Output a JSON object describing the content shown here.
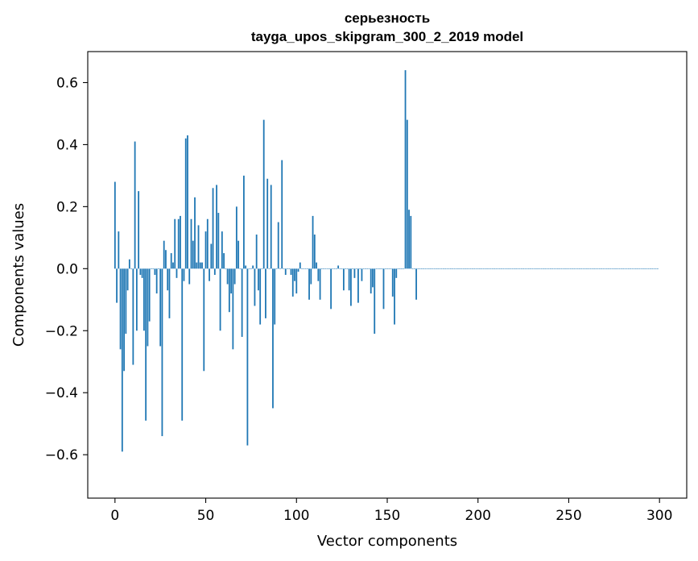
{
  "chart_data": {
    "type": "bar",
    "title": "серьезность",
    "subtitle": "tayga_upos_skipgram_300_2_2019 model",
    "xlabel": "Vector components",
    "ylabel": "Components values",
    "xlim": [
      -15,
      315
    ],
    "ylim": [
      -0.74,
      0.7
    ],
    "xticks": [
      0,
      50,
      100,
      150,
      200,
      250,
      300
    ],
    "xtick_labels": [
      "0",
      "50",
      "100",
      "150",
      "200",
      "250",
      "300"
    ],
    "yticks": [
      -0.6,
      -0.4,
      -0.2,
      0.0,
      0.2,
      0.4,
      0.6
    ],
    "ytick_labels": [
      "−0.6",
      "−0.4",
      "−0.2",
      "0.0",
      "0.2",
      "0.4",
      "0.6"
    ],
    "bar_color": "#1f77b4",
    "grid": false,
    "x_start": 0,
    "values": [
      0.28,
      -0.11,
      0.12,
      -0.26,
      -0.59,
      -0.33,
      -0.21,
      -0.07,
      0.03,
      0.0,
      -0.31,
      0.41,
      -0.2,
      0.25,
      -0.02,
      -0.03,
      -0.2,
      -0.49,
      -0.25,
      -0.17,
      0.0,
      0.0,
      -0.02,
      -0.08,
      0.0,
      -0.25,
      -0.54,
      0.09,
      0.06,
      -0.07,
      -0.16,
      0.05,
      0.02,
      0.16,
      -0.03,
      0.16,
      0.17,
      -0.49,
      -0.04,
      0.42,
      0.43,
      -0.05,
      0.16,
      0.09,
      0.23,
      0.02,
      0.14,
      0.02,
      0.02,
      -0.33,
      0.12,
      0.16,
      -0.04,
      0.08,
      0.26,
      -0.02,
      0.27,
      0.18,
      -0.2,
      0.12,
      0.05,
      0.0,
      -0.05,
      -0.14,
      -0.08,
      -0.26,
      -0.05,
      0.2,
      0.09,
      0.0,
      -0.22,
      0.3,
      0.01,
      -0.57,
      0.0,
      0.0,
      0.01,
      -0.12,
      0.11,
      -0.07,
      -0.18,
      0.0,
      0.48,
      -0.16,
      0.29,
      0.0,
      0.27,
      -0.45,
      -0.18,
      0.0,
      0.15,
      0.0,
      0.35,
      0.0,
      -0.02,
      0.0,
      0.0,
      -0.02,
      -0.09,
      -0.04,
      -0.08,
      -0.01,
      0.02,
      0.0,
      0.0,
      0.0,
      0.0,
      -0.1,
      -0.05,
      0.17,
      0.11,
      0.02,
      -0.04,
      -0.1,
      0.0,
      0.0,
      0.0,
      0.0,
      0.0,
      -0.13,
      0.0,
      0.0,
      0.0,
      0.01,
      0.0,
      0.0,
      -0.07,
      0.0,
      0.0,
      -0.07,
      -0.12,
      0.0,
      -0.03,
      0.0,
      -0.11,
      0.0,
      -0.04,
      0.0,
      0.0,
      0.0,
      0.0,
      -0.08,
      -0.06,
      -0.21,
      0.0,
      0.0,
      0.0,
      0.0,
      -0.13,
      0.0,
      0.0,
      0.0,
      0.0,
      -0.09,
      -0.18,
      -0.03,
      0.0,
      0.0,
      0.0,
      0.0,
      0.64,
      0.48,
      0.19,
      0.17,
      0.0,
      0.0,
      -0.1,
      0.0,
      0.0,
      0.0,
      0.0,
      0.0,
      0.0,
      0.0,
      0.0,
      0.0,
      0.0,
      0.0,
      0.0,
      0.0,
      0.0,
      0.0,
      0.0,
      0.0,
      0.0,
      0.0,
      0.0,
      0.0,
      0.0,
      0.0,
      0.0,
      0.0,
      0.0,
      0.0,
      0.0,
      0.0,
      0.0,
      0.0,
      0.0,
      0.0,
      0.0,
      0.0,
      0.0,
      0.0,
      0.0,
      0.0,
      0.0,
      0.0,
      0.0,
      0.0,
      0.0,
      0.0,
      0.0,
      0.0,
      0.0,
      0.0,
      0.0,
      0.0,
      0.0,
      0.0,
      0.0,
      0.0,
      0.0,
      0.0,
      0.0,
      0.0,
      0.0,
      0.0,
      0.0,
      0.0,
      0.0,
      0.0,
      0.0,
      0.0,
      0.0,
      0.0,
      0.0,
      0.0,
      0.0,
      0.0,
      0.0,
      0.0,
      0.0,
      0.0,
      0.0,
      0.0,
      0.0,
      0.0,
      0.0,
      0.0,
      0.0,
      0.0,
      0.0,
      0.0,
      0.0,
      0.0,
      0.0,
      0.0,
      0.0,
      0.0,
      0.0,
      0.0,
      0.0,
      0.0,
      0.0,
      0.0,
      0.0,
      0.0,
      0.0,
      0.0,
      0.0,
      0.0,
      0.0,
      0.0,
      0.0,
      0.0,
      0.0,
      0.0,
      0.0,
      0.0,
      0.0,
      0.0,
      0.0,
      0.0,
      0.0,
      0.0,
      0.0,
      0.0,
      0.0,
      0.0,
      0.0,
      0.0,
      0.0,
      0.0,
      0.0,
      0.0,
      0.0,
      0.0,
      0.0,
      0.0
    ]
  }
}
